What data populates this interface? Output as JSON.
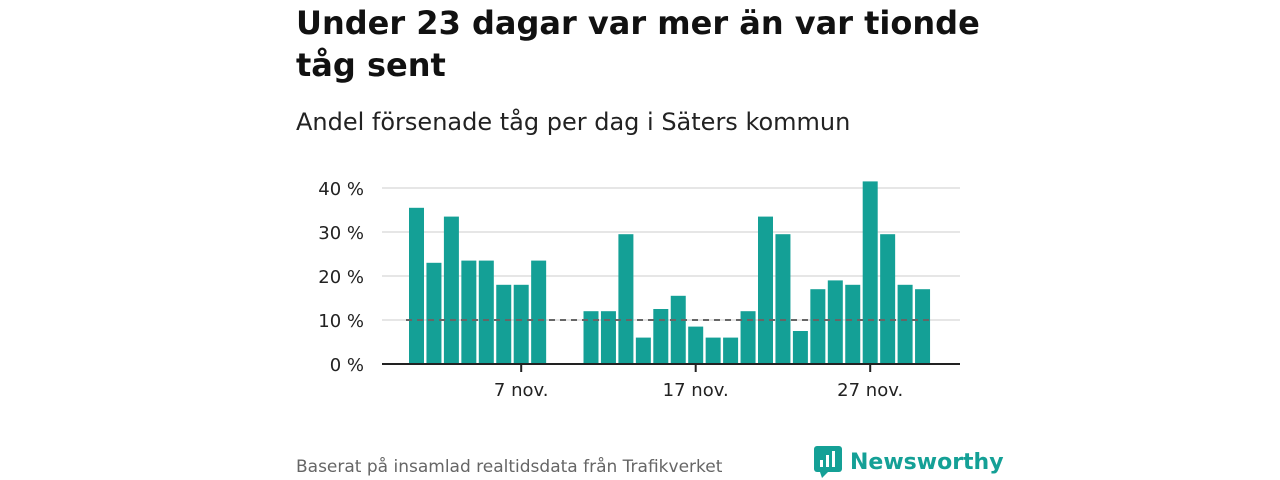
{
  "title": "Under 23 dagar var mer än var tionde tåg sent",
  "subtitle": "Andel försenade tåg per dag i Säters kommun",
  "footer": {
    "source": "Baserat på insamlad realtidsdata från Trafikverket",
    "brand": "Newsworthy"
  },
  "colors": {
    "bar": "#14a096",
    "grid": "#dddddd",
    "axis": "#222222",
    "reference_line": "#666666",
    "brand": "#14a096"
  },
  "icons": {
    "brand_logo": "newsworthy-logo-icon"
  },
  "chart_data": {
    "type": "bar",
    "categories": [
      1,
      2,
      3,
      4,
      5,
      6,
      7,
      8,
      9,
      10,
      11,
      12,
      13,
      14,
      15,
      16,
      17,
      18,
      19,
      20,
      21,
      22,
      23,
      24,
      25,
      26,
      27,
      28,
      29,
      30
    ],
    "values": [
      35.5,
      23,
      33.5,
      23.5,
      23.5,
      18,
      18,
      23.5,
      null,
      null,
      12,
      12,
      29.5,
      6,
      12.5,
      15.5,
      8.5,
      6,
      6,
      12,
      33.5,
      29.5,
      7.5,
      17,
      19,
      18,
      41.5,
      29.5,
      18,
      17
    ],
    "ylim": [
      0,
      42
    ],
    "y_ticks": [
      0,
      10,
      20,
      30,
      40
    ],
    "y_tick_labels": [
      "0 %",
      "10 %",
      "20 %",
      "30 %",
      "40 %"
    ],
    "x_ticks": [
      7,
      17,
      27
    ],
    "x_tick_labels": [
      "7 nov.",
      "17 nov.",
      "27 nov."
    ],
    "reference_line": 10,
    "grid": true,
    "legend": "none"
  }
}
